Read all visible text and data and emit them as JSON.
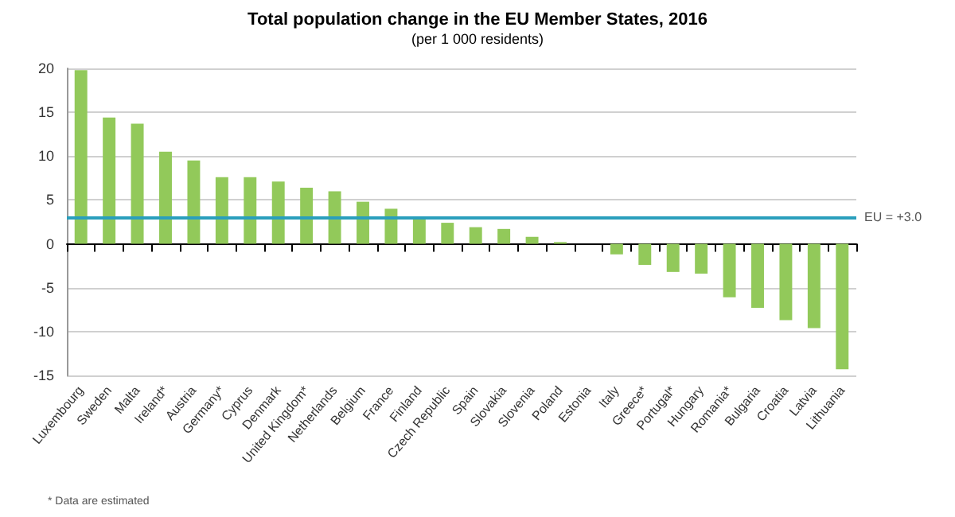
{
  "chart_data": {
    "type": "bar",
    "title": "Total population change in the EU Member States, 2016",
    "subtitle": "(per 1 000 residents)",
    "categories": [
      "Luxembourg",
      "Sweden",
      "Malta",
      "Ireland*",
      "Austria",
      "Germany*",
      "Cyprus",
      "Denmark",
      "United Kingdom*",
      "Netherlands",
      "Belgium",
      "France",
      "Finland",
      "Czech Republic",
      "Spain",
      "Slovakia",
      "Slovenia",
      "Poland",
      "Estonia",
      "Italy",
      "Greece*",
      "Portugal*",
      "Hungary",
      "Romania*",
      "Bulgaria",
      "Croatia",
      "Latvia",
      "Lithuania"
    ],
    "values": [
      19.8,
      14.4,
      13.7,
      10.5,
      9.5,
      7.6,
      7.6,
      7.1,
      6.4,
      6.0,
      4.8,
      4.0,
      2.9,
      2.4,
      1.9,
      1.7,
      0.8,
      0.2,
      0,
      -1.2,
      -2.4,
      -3.2,
      -3.4,
      -6.1,
      -7.3,
      -8.7,
      -9.6,
      -14.3
    ],
    "color": "#92c95a",
    "ylim": [
      -15,
      20
    ],
    "yticks": [
      -15,
      -10,
      -5,
      0,
      5,
      10,
      15,
      20
    ],
    "grid": "y",
    "ref_lines": [
      {
        "axis": "y",
        "value": 3.0,
        "label": "EU = +3.0",
        "color": "#2a9fbc"
      }
    ],
    "annotations": [
      "* Data are estimated"
    ]
  }
}
